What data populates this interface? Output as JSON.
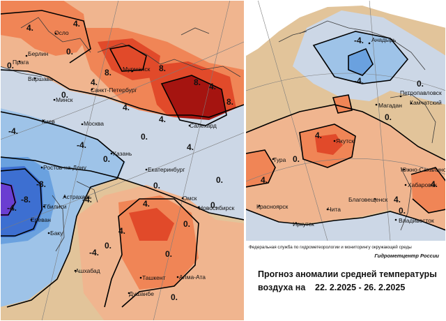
{
  "palette": {
    "strong_warm": "#a51410",
    "warm_4": "#e14a2a",
    "warm_3": "#f08556",
    "warm_2": "#f0b58f",
    "warm_1": "#e6c08c",
    "neutral": "#ccd7e6",
    "cold_1": "#9ec3e8",
    "cold_2": "#6aa1df",
    "cold_3": "#3d6fd1",
    "strong_cold": "#6a3ed1",
    "background": "#e2c49a"
  },
  "isolines": [
    "-8.",
    "-4.",
    "0.",
    "4.",
    "8."
  ],
  "west_map": {
    "cities": [
      "Осло",
      "Берлин",
      "Прага",
      "Варшава",
      "Мурманск",
      "Санкт-Петербург",
      "Минск",
      "Киев",
      "Москва",
      "Салехард",
      "Казань",
      "Ростов-на-Дону",
      "Екатеринбург",
      "Астрахань",
      "Тбилиси",
      "Ереван",
      "Баку",
      "Омск",
      "Новосибирск",
      "Ашхабад",
      "Ташкент",
      "Алма-Ата",
      "Душанбе"
    ],
    "isoline_labels": [
      "4.",
      "4.",
      "0.",
      "0.",
      "0.",
      "4.",
      "8.",
      "8.",
      "4.",
      "4.",
      "8.",
      "8.",
      "4.",
      "4.",
      "0.",
      "-4.",
      "-4.",
      "0.",
      "-8.",
      "-8.",
      "-4.",
      "-4.",
      "0.",
      "0.",
      "0.",
      "4.",
      "4.",
      "0.",
      "0.",
      "0.",
      "0.",
      "-4."
    ]
  },
  "east_map": {
    "cities": [
      "Анадырь",
      "Петропавловск",
      "Магадан",
      "Камчатский",
      "Якутск",
      "Тура",
      "Южно-Сахалинск",
      "Хабаровск",
      "Благовещенск",
      "Владивосток",
      "Красноярск",
      "Чита",
      "Иркутск"
    ],
    "isoline_labels": [
      "-4.",
      "-4.",
      "0.",
      "0.",
      "4.",
      "0.",
      "4.",
      "4.",
      "4.",
      "0."
    ]
  },
  "credits": {
    "service": "Федеральная служба по гидрометеорологии и мониторингу окружающей среды",
    "center": "Гидрометцентр России"
  },
  "forecast": {
    "title_line1": "Прогноз аномалии средней температуры",
    "title_line2_prefix": "воздуха на",
    "period": "22. 2.2025 - 26. 2.2025"
  }
}
